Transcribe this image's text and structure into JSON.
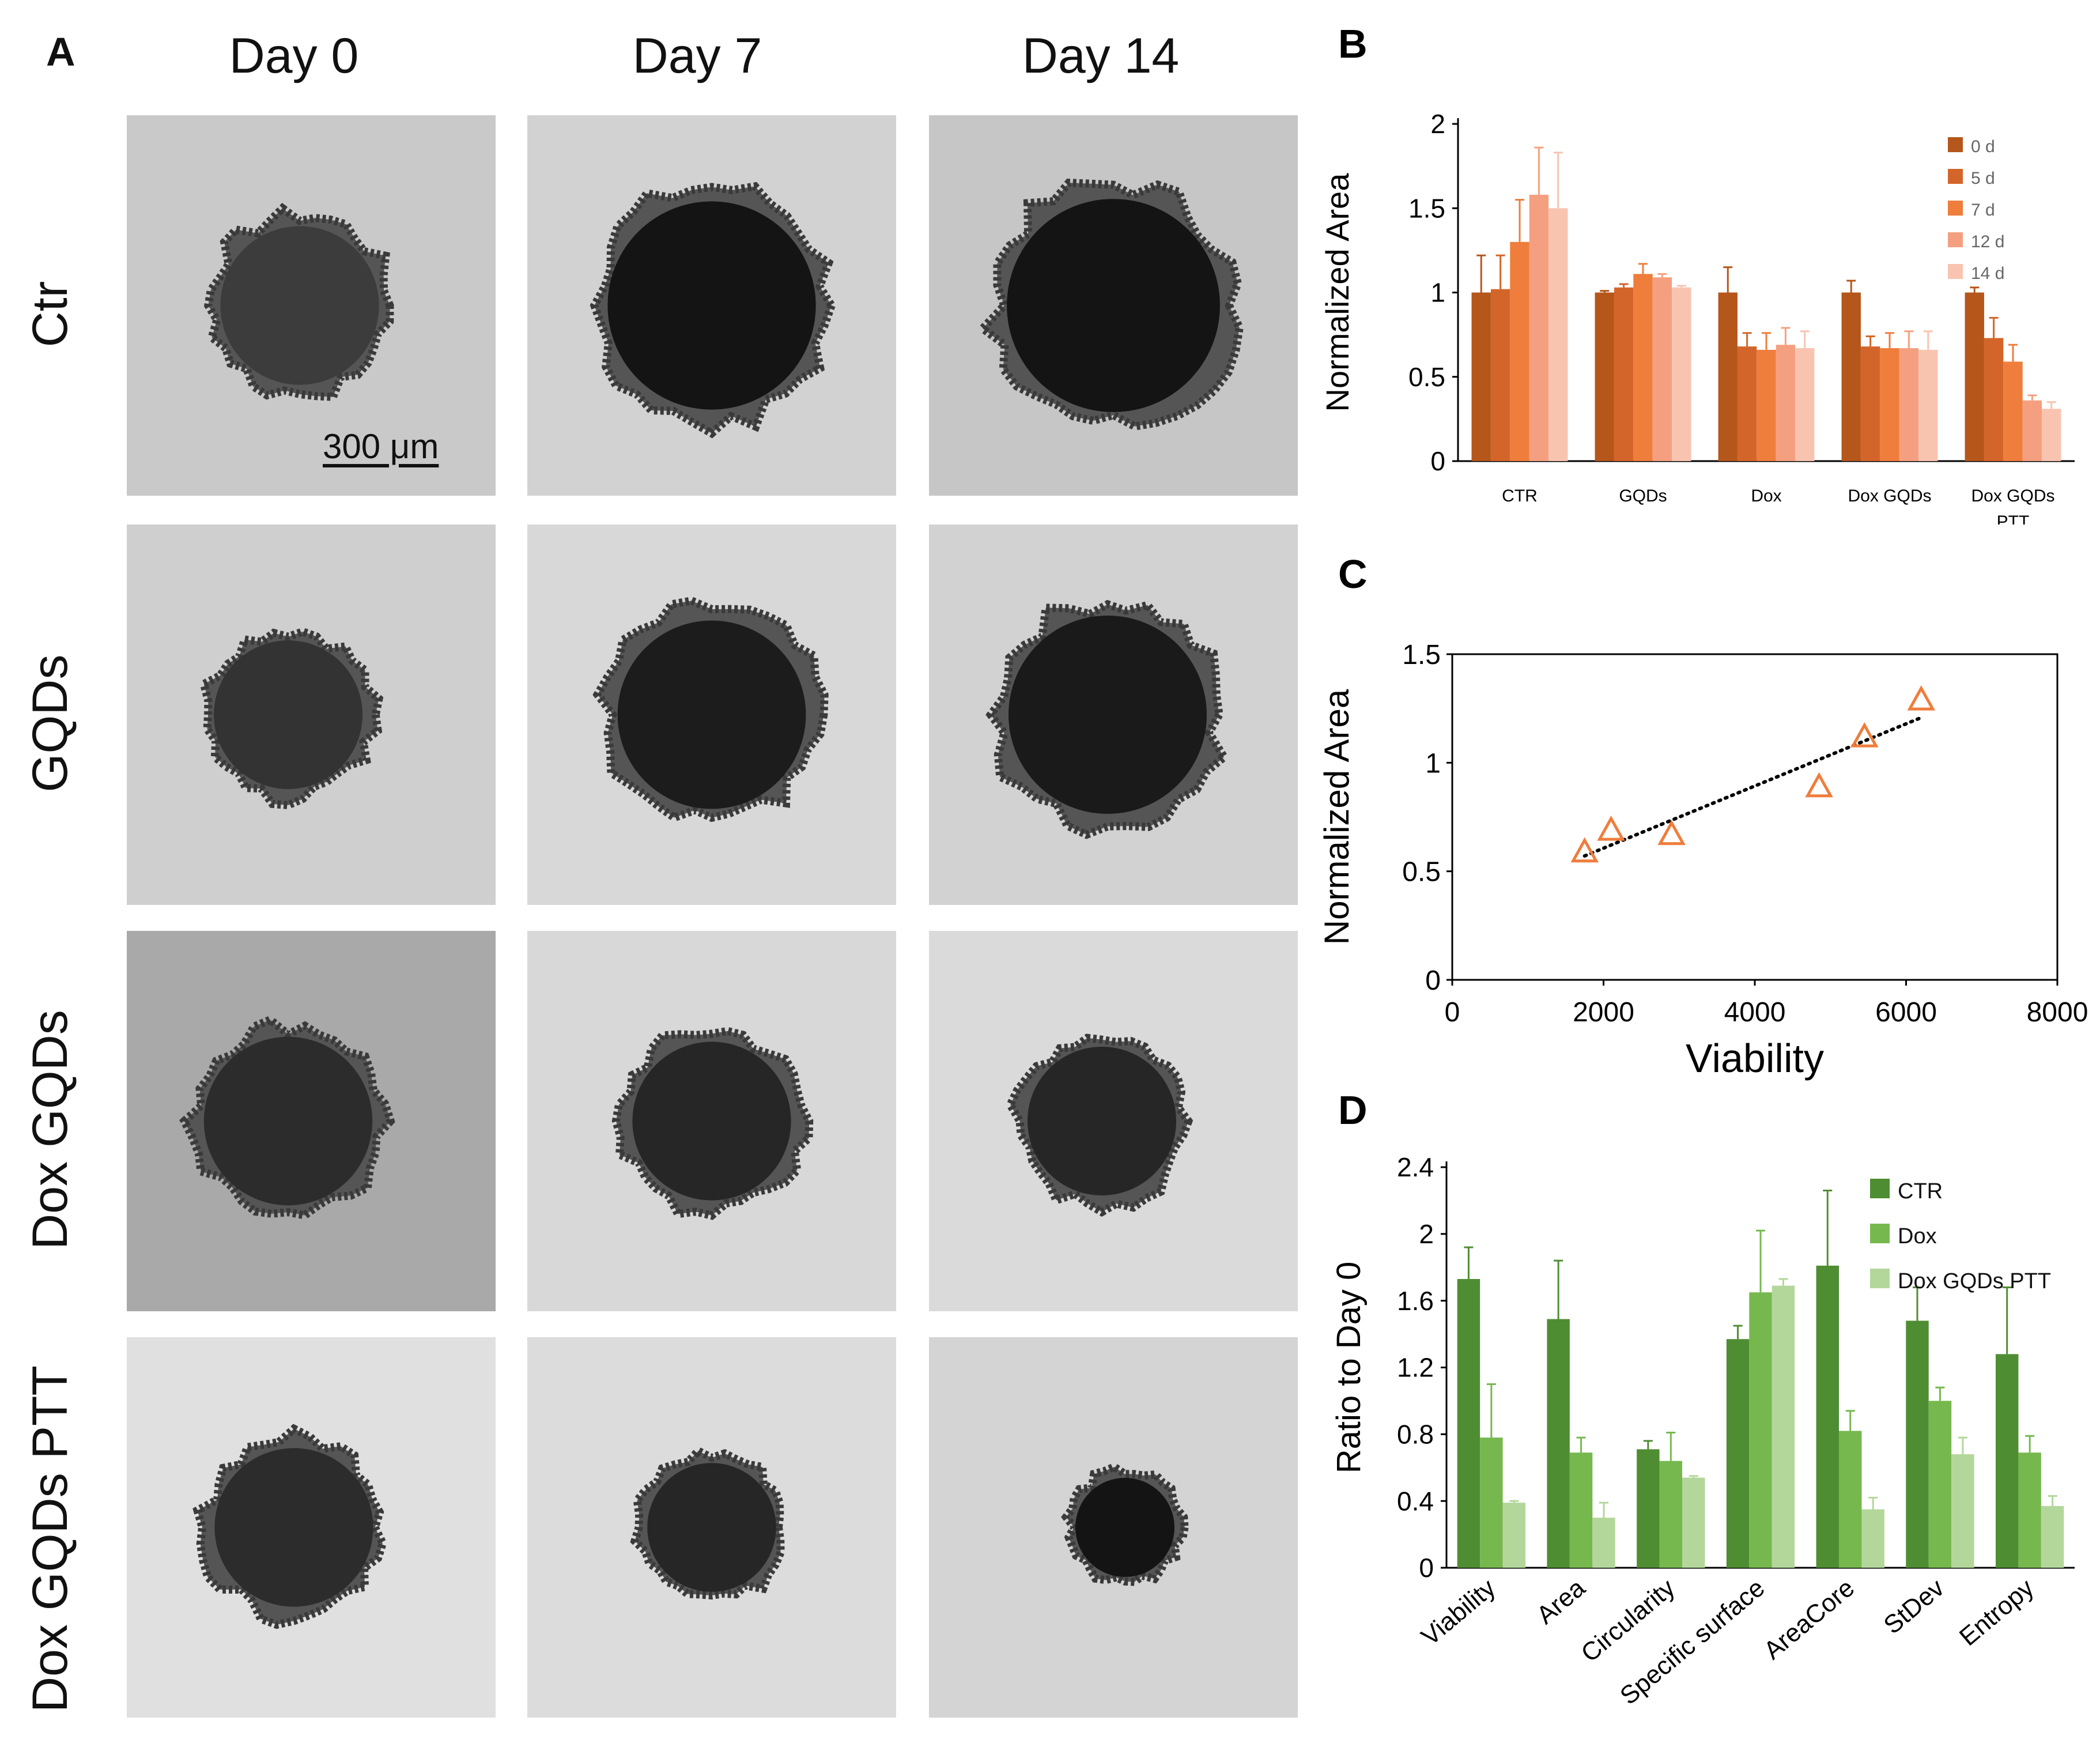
{
  "panelA": {
    "letter": "A",
    "columns": [
      "Day 0",
      "Day 7",
      "Day 14"
    ],
    "rows": [
      "Ctr",
      "GQDs",
      "Dox GQDs",
      "Dox GQDs PTT"
    ],
    "scale_bar_label": "300 μm"
  },
  "chart_data": [
    {
      "panel": "B",
      "type": "bar",
      "title": "",
      "xlabel": "",
      "ylabel": "Normalized Area",
      "ylim": [
        0,
        2
      ],
      "yticks": [
        0,
        0.5,
        1,
        1.5,
        2
      ],
      "categories": [
        "CTR",
        "GQDs",
        "Dox",
        "Dox GQDs",
        "Dox GQDs PTT"
      ],
      "legend_position": "top-right",
      "series": [
        {
          "name": "0 d",
          "color": "#b5561b",
          "values": [
            1.0,
            1.0,
            1.0,
            1.0,
            1.0
          ],
          "errors": [
            0.22,
            0.01,
            0.15,
            0.07,
            0.03
          ]
        },
        {
          "name": "5 d",
          "color": "#d4652a",
          "values": [
            1.02,
            1.03,
            0.68,
            0.68,
            0.73
          ],
          "errors": [
            0.2,
            0.02,
            0.08,
            0.06,
            0.12
          ]
        },
        {
          "name": "7 d",
          "color": "#ef7d3c",
          "values": [
            1.3,
            1.11,
            0.66,
            0.67,
            0.59
          ],
          "errors": [
            0.25,
            0.06,
            0.1,
            0.09,
            0.1
          ]
        },
        {
          "name": "12 d",
          "color": "#f4a080",
          "values": [
            1.58,
            1.09,
            0.69,
            0.67,
            0.36
          ],
          "errors": [
            0.28,
            0.02,
            0.1,
            0.1,
            0.03
          ]
        },
        {
          "name": "14 d",
          "color": "#f8c4b0",
          "values": [
            1.5,
            1.03,
            0.67,
            0.66,
            0.31
          ],
          "errors": [
            0.33,
            0.01,
            0.1,
            0.11,
            0.04
          ]
        }
      ]
    },
    {
      "panel": "C",
      "type": "scatter",
      "title": "",
      "xlabel": "Viability",
      "ylabel": "Normalized Area",
      "xlim": [
        0,
        8000
      ],
      "ylim": [
        0,
        1.5
      ],
      "xticks": [
        0,
        2000,
        4000,
        6000,
        8000
      ],
      "yticks": [
        0,
        0.5,
        1,
        1.5
      ],
      "marker_color": "#ef7d3c",
      "trendline": "dotted",
      "x": [
        1750,
        2100,
        2900,
        4850,
        5450,
        6200
      ],
      "y": [
        0.59,
        0.69,
        0.67,
        0.89,
        1.12,
        1.29
      ]
    },
    {
      "panel": "D",
      "type": "bar",
      "title": "",
      "xlabel": "",
      "ylabel": "Ratio to Day 0",
      "ylim": [
        0,
        2.4
      ],
      "yticks": [
        0,
        0.4,
        0.8,
        1.2,
        1.6,
        2,
        2.4
      ],
      "categories": [
        "Viability",
        "Area",
        "Circularity",
        "Specific surface",
        "AreaCore",
        "StDev",
        "Entropy"
      ],
      "legend_position": "top-right",
      "series": [
        {
          "name": "CTR",
          "color": "#4f8d32",
          "values": [
            1.73,
            1.49,
            0.71,
            1.37,
            1.81,
            1.48,
            1.28
          ],
          "errors": [
            0.19,
            0.35,
            0.05,
            0.08,
            0.45,
            0.2,
            0.4
          ]
        },
        {
          "name": "Dox",
          "color": "#76b84e",
          "values": [
            0.78,
            0.69,
            0.64,
            1.65,
            0.82,
            1.0,
            0.69
          ],
          "errors": [
            0.32,
            0.09,
            0.17,
            0.37,
            0.12,
            0.08,
            0.1
          ]
        },
        {
          "name": "Dox GQDs PTT",
          "color": "#b3d79b",
          "values": [
            0.39,
            0.3,
            0.54,
            1.69,
            0.35,
            0.68,
            0.37
          ],
          "errors": [
            0.01,
            0.09,
            0.01,
            0.04,
            0.07,
            0.1,
            0.06
          ]
        }
      ]
    }
  ]
}
